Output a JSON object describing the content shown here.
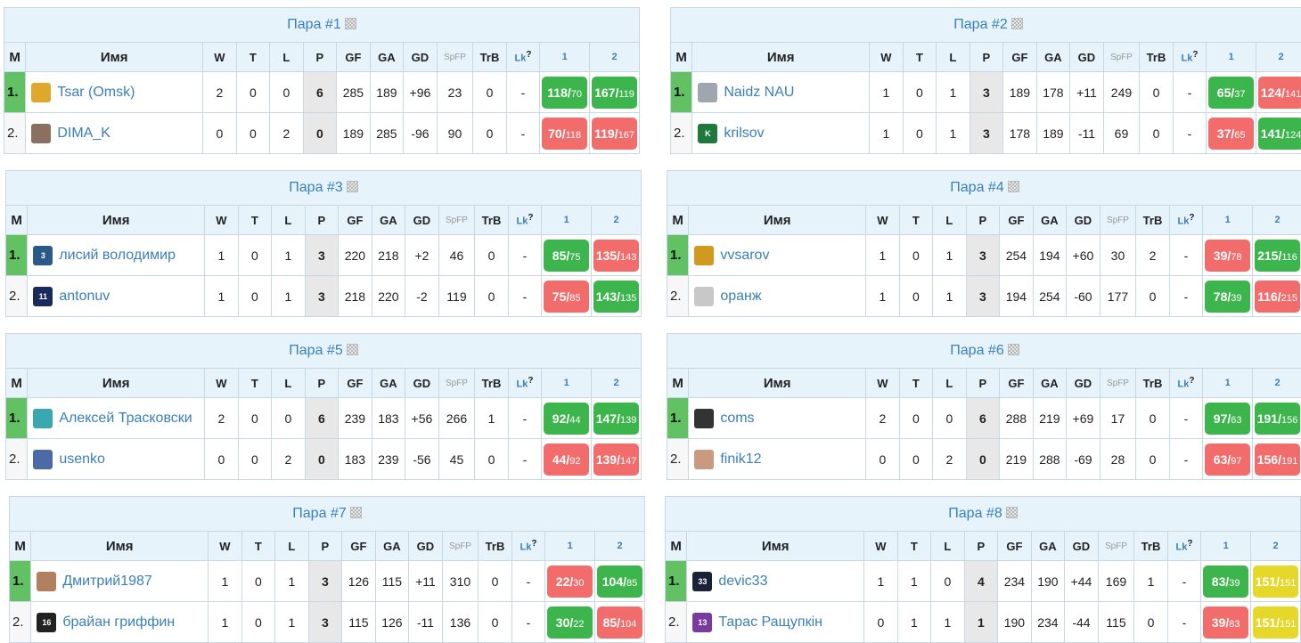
{
  "pairs": [
    {
      "title": "Пара #1",
      "players": [
        {
          "rank": "1.",
          "name": "Tsar (Omsk)",
          "avatar": "tsar-avatar",
          "avatar_color": "#e0a82a",
          "W": "2",
          "T": "0",
          "L": "0",
          "P": "6",
          "GF": "285",
          "GA": "189",
          "GD": "+96",
          "SpFP": "23",
          "TrB": "0",
          "Lk": "-",
          "g1": {
            "a": "118",
            "b": "70",
            "r": "win"
          },
          "g2": {
            "a": "167",
            "b": "119",
            "r": "win"
          }
        },
        {
          "rank": "2.",
          "name": "DIMA_K",
          "avatar": "dima-avatar",
          "avatar_color": "#8a7060",
          "W": "0",
          "T": "0",
          "L": "2",
          "P": "0",
          "GF": "189",
          "GA": "285",
          "GD": "-96",
          "SpFP": "90",
          "TrB": "0",
          "Lk": "-",
          "g1": {
            "a": "70",
            "b": "118",
            "r": "loss"
          },
          "g2": {
            "a": "119",
            "b": "167",
            "r": "loss"
          }
        }
      ]
    },
    {
      "title": "Пара #2",
      "players": [
        {
          "rank": "1.",
          "name": "Naidz NAU",
          "avatar": "naidz-avatar",
          "avatar_color": "#a0a6b0",
          "W": "1",
          "T": "0",
          "L": "1",
          "P": "3",
          "GF": "189",
          "GA": "178",
          "GD": "+11",
          "SpFP": "249",
          "TrB": "0",
          "Lk": "-",
          "g1": {
            "a": "65",
            "b": "37",
            "r": "win"
          },
          "g2": {
            "a": "124",
            "b": "141",
            "r": "loss"
          }
        },
        {
          "rank": "2.",
          "name": "krilsov",
          "avatar": "krilsov-avatar",
          "avatar_color": "#1e7a3a",
          "W": "1",
          "T": "0",
          "L": "1",
          "P": "3",
          "GF": "178",
          "GA": "189",
          "GD": "-11",
          "SpFP": "69",
          "TrB": "0",
          "Lk": "-",
          "g1": {
            "a": "37",
            "b": "65",
            "r": "loss"
          },
          "g2": {
            "a": "141",
            "b": "124",
            "r": "win"
          }
        }
      ]
    },
    {
      "title": "Пара #3",
      "players": [
        {
          "rank": "1.",
          "name": "лисий володимир",
          "avatar": "jersey-3-avatar",
          "avatar_color": "#2a5a8a",
          "W": "1",
          "T": "0",
          "L": "1",
          "P": "3",
          "GF": "220",
          "GA": "218",
          "GD": "+2",
          "SpFP": "46",
          "TrB": "0",
          "Lk": "-",
          "g1": {
            "a": "85",
            "b": "75",
            "r": "win"
          },
          "g2": {
            "a": "135",
            "b": "143",
            "r": "loss"
          }
        },
        {
          "rank": "2.",
          "name": "antonuv",
          "avatar": "jersey-11-avatar",
          "avatar_color": "#1a2a5a",
          "W": "1",
          "T": "0",
          "L": "1",
          "P": "3",
          "GF": "218",
          "GA": "220",
          "GD": "-2",
          "SpFP": "119",
          "TrB": "0",
          "Lk": "-",
          "g1": {
            "a": "75",
            "b": "85",
            "r": "loss"
          },
          "g2": {
            "a": "143",
            "b": "135",
            "r": "win"
          }
        }
      ]
    },
    {
      "title": "Пара #4",
      "players": [
        {
          "rank": "1.",
          "name": "vvsarov",
          "avatar": "vvsarov-avatar",
          "avatar_color": "#d09a20",
          "W": "1",
          "T": "0",
          "L": "1",
          "P": "3",
          "GF": "254",
          "GA": "194",
          "GD": "+60",
          "SpFP": "30",
          "TrB": "2",
          "Lk": "-",
          "g1": {
            "a": "39",
            "b": "78",
            "r": "loss"
          },
          "g2": {
            "a": "215",
            "b": "116",
            "r": "win"
          }
        },
        {
          "rank": "2.",
          "name": "оранж",
          "avatar": "oranzh-avatar",
          "avatar_color": "#c8c8c8",
          "W": "1",
          "T": "0",
          "L": "1",
          "P": "3",
          "GF": "194",
          "GA": "254",
          "GD": "-60",
          "SpFP": "177",
          "TrB": "0",
          "Lk": "-",
          "g1": {
            "a": "78",
            "b": "39",
            "r": "win"
          },
          "g2": {
            "a": "116",
            "b": "215",
            "r": "loss"
          }
        }
      ]
    },
    {
      "title": "Пара #5",
      "players": [
        {
          "rank": "1.",
          "name": "Алексей Трасковски",
          "avatar": "traskovski-avatar",
          "avatar_color": "#3aa8b0",
          "W": "2",
          "T": "0",
          "L": "0",
          "P": "6",
          "GF": "239",
          "GA": "183",
          "GD": "+56",
          "SpFP": "266",
          "TrB": "1",
          "Lk": "-",
          "g1": {
            "a": "92",
            "b": "44",
            "r": "win"
          },
          "g2": {
            "a": "147",
            "b": "139",
            "r": "win"
          }
        },
        {
          "rank": "2.",
          "name": "usenko",
          "avatar": "usenko-avatar",
          "avatar_color": "#4a6aa8",
          "W": "0",
          "T": "0",
          "L": "2",
          "P": "0",
          "GF": "183",
          "GA": "239",
          "GD": "-56",
          "SpFP": "45",
          "TrB": "0",
          "Lk": "-",
          "g1": {
            "a": "44",
            "b": "92",
            "r": "loss"
          },
          "g2": {
            "a": "139",
            "b": "147",
            "r": "loss"
          }
        }
      ]
    },
    {
      "title": "Пара #6",
      "players": [
        {
          "rank": "1.",
          "name": "coms",
          "avatar": "coms-avatar",
          "avatar_color": "#333333",
          "W": "2",
          "T": "0",
          "L": "0",
          "P": "6",
          "GF": "288",
          "GA": "219",
          "GD": "+69",
          "SpFP": "17",
          "TrB": "0",
          "Lk": "-",
          "g1": {
            "a": "97",
            "b": "63",
            "r": "win"
          },
          "g2": {
            "a": "191",
            "b": "156",
            "r": "win"
          }
        },
        {
          "rank": "2.",
          "name": "finik12",
          "avatar": "finik-avatar",
          "avatar_color": "#c89a80",
          "W": "0",
          "T": "0",
          "L": "2",
          "P": "0",
          "GF": "219",
          "GA": "288",
          "GD": "-69",
          "SpFP": "28",
          "TrB": "0",
          "Lk": "-",
          "g1": {
            "a": "63",
            "b": "97",
            "r": "loss"
          },
          "g2": {
            "a": "156",
            "b": "191",
            "r": "loss"
          }
        }
      ]
    },
    {
      "title": "Пара #7",
      "players": [
        {
          "rank": "1.",
          "name": "Дмитрий1987",
          "avatar": "dmitriy-avatar",
          "avatar_color": "#b08060",
          "W": "1",
          "T": "0",
          "L": "1",
          "P": "3",
          "GF": "126",
          "GA": "115",
          "GD": "+11",
          "SpFP": "310",
          "TrB": "0",
          "Lk": "-",
          "g1": {
            "a": "22",
            "b": "30",
            "r": "loss"
          },
          "g2": {
            "a": "104",
            "b": "85",
            "r": "win"
          }
        },
        {
          "rank": "2.",
          "name": "брайан гриффин",
          "avatar": "jersey-16-avatar",
          "avatar_color": "#222222",
          "W": "1",
          "T": "0",
          "L": "1",
          "P": "3",
          "GF": "115",
          "GA": "126",
          "GD": "-11",
          "SpFP": "136",
          "TrB": "0",
          "Lk": "-",
          "g1": {
            "a": "30",
            "b": "22",
            "r": "win"
          },
          "g2": {
            "a": "85",
            "b": "104",
            "r": "loss"
          }
        }
      ]
    },
    {
      "title": "Пара #8",
      "players": [
        {
          "rank": "1.",
          "name": "devic33",
          "avatar": "jersey-33-avatar",
          "avatar_color": "#1a2238",
          "W": "1",
          "T": "1",
          "L": "0",
          "P": "4",
          "GF": "234",
          "GA": "190",
          "GD": "+44",
          "SpFP": "169",
          "TrB": "1",
          "Lk": "-",
          "g1": {
            "a": "83",
            "b": "39",
            "r": "win"
          },
          "g2": {
            "a": "151",
            "b": "151",
            "r": "draw"
          }
        },
        {
          "rank": "2.",
          "name": "Тарас Ращупкін",
          "avatar": "jersey-13-avatar",
          "avatar_color": "#7a3aa0",
          "W": "0",
          "T": "1",
          "L": "1",
          "P": "1",
          "GF": "190",
          "GA": "234",
          "GD": "-44",
          "SpFP": "115",
          "TrB": "0",
          "Lk": "-",
          "g1": {
            "a": "39",
            "b": "83",
            "r": "loss"
          },
          "g2": {
            "a": "151",
            "b": "151",
            "r": "draw"
          }
        }
      ]
    }
  ],
  "headers": {
    "M": "M",
    "name": "Имя",
    "W": "W",
    "T": "T",
    "L": "L",
    "P": "P",
    "GF": "GF",
    "GA": "GA",
    "GD": "GD",
    "SpFP": "SpFP",
    "TrB": "TrB",
    "Lk": "Lk",
    "Lk_help": "?",
    "g1": "1",
    "g2": "2"
  },
  "jersey_numbers": {
    "jersey-3-avatar": "3",
    "jersey-11-avatar": "11",
    "jersey-16-avatar": "16",
    "jersey-33-avatar": "33",
    "jersey-13-avatar": "13",
    "krilsov-avatar": "K"
  },
  "colors": {
    "win": "#3cb64c",
    "loss": "#f26c6c",
    "draw": "#e5d82b",
    "header_bg": "#e6f3fb",
    "link": "#3a7fb8",
    "rank_leader": "#62c162"
  }
}
